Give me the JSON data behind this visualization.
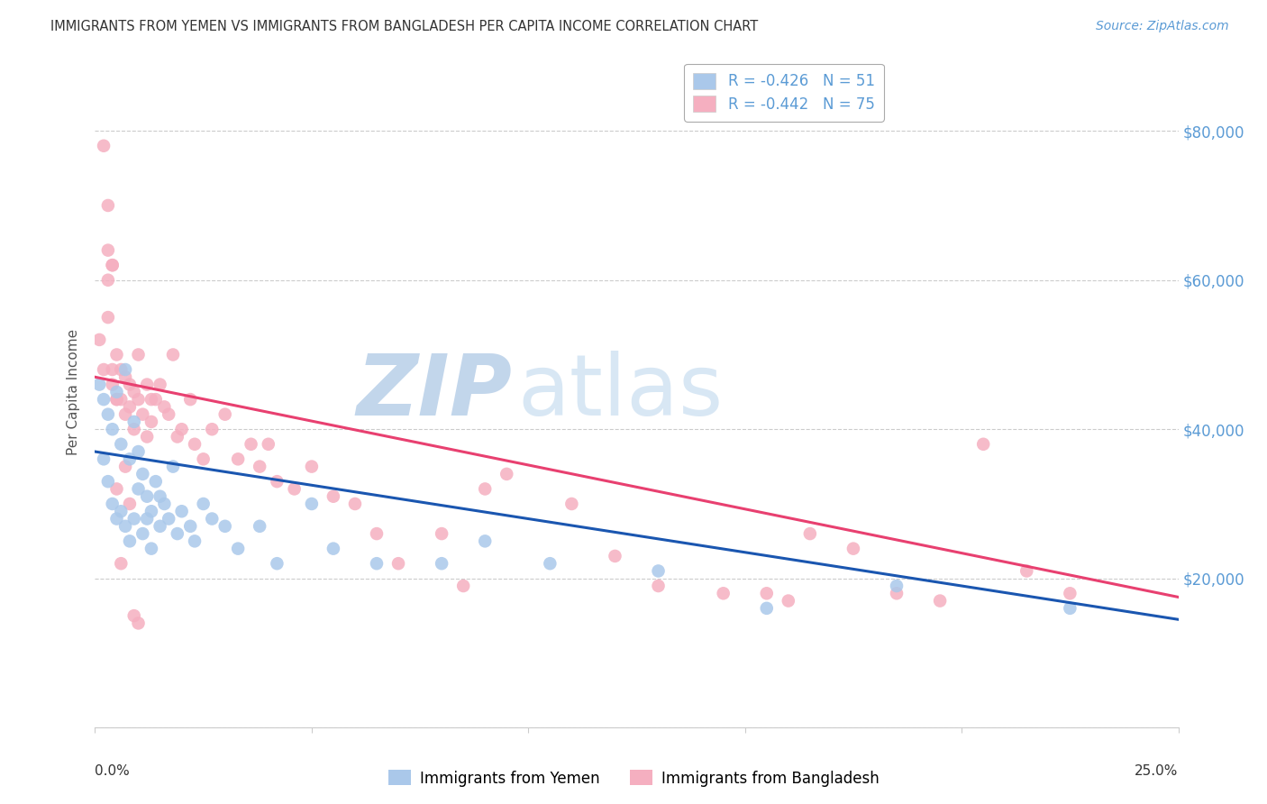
{
  "title": "IMMIGRANTS FROM YEMEN VS IMMIGRANTS FROM BANGLADESH PER CAPITA INCOME CORRELATION CHART",
  "source": "Source: ZipAtlas.com",
  "ylabel": "Per Capita Income",
  "xlim": [
    0.0,
    0.25
  ],
  "ylim": [
    0,
    90000
  ],
  "yticks": [
    0,
    20000,
    40000,
    60000,
    80000
  ],
  "ytick_labels": [
    "",
    "$20,000",
    "$40,000",
    "$60,000",
    "$80,000"
  ],
  "background_color": "#ffffff",
  "grid_color": "#cccccc",
  "label_color": "#5b9bd5",
  "title_color": "#333333",
  "source_color": "#5b9bd5",
  "yemen_color": "#aac8ea",
  "bangladesh_color": "#f5afc0",
  "yemen_line_color": "#1a56b0",
  "bangladesh_line_color": "#e84070",
  "legend_items": [
    {
      "label": "R = -0.426   N = 51",
      "color": "#aac8ea"
    },
    {
      "label": "R = -0.442   N = 75",
      "color": "#f5afc0"
    }
  ],
  "bottom_legend": [
    {
      "label": "Immigrants from Yemen",
      "color": "#aac8ea"
    },
    {
      "label": "Immigrants from Bangladesh",
      "color": "#f5afc0"
    }
  ],
  "yemen_x": [
    0.001,
    0.002,
    0.002,
    0.003,
    0.003,
    0.004,
    0.004,
    0.005,
    0.005,
    0.006,
    0.006,
    0.007,
    0.007,
    0.008,
    0.008,
    0.009,
    0.009,
    0.01,
    0.01,
    0.011,
    0.011,
    0.012,
    0.012,
    0.013,
    0.013,
    0.014,
    0.015,
    0.015,
    0.016,
    0.017,
    0.018,
    0.019,
    0.02,
    0.022,
    0.023,
    0.025,
    0.027,
    0.03,
    0.033,
    0.038,
    0.042,
    0.05,
    0.055,
    0.065,
    0.08,
    0.09,
    0.105,
    0.13,
    0.155,
    0.185,
    0.225
  ],
  "yemen_y": [
    46000,
    44000,
    36000,
    42000,
    33000,
    40000,
    30000,
    45000,
    28000,
    38000,
    29000,
    48000,
    27000,
    36000,
    25000,
    41000,
    28000,
    37000,
    32000,
    34000,
    26000,
    31000,
    28000,
    29000,
    24000,
    33000,
    31000,
    27000,
    30000,
    28000,
    35000,
    26000,
    29000,
    27000,
    25000,
    30000,
    28000,
    27000,
    24000,
    27000,
    22000,
    30000,
    24000,
    22000,
    22000,
    25000,
    22000,
    21000,
    16000,
    19000,
    16000
  ],
  "bangladesh_x": [
    0.001,
    0.002,
    0.002,
    0.003,
    0.003,
    0.004,
    0.004,
    0.005,
    0.005,
    0.006,
    0.006,
    0.007,
    0.007,
    0.008,
    0.008,
    0.009,
    0.009,
    0.01,
    0.01,
    0.011,
    0.012,
    0.012,
    0.013,
    0.013,
    0.014,
    0.015,
    0.016,
    0.017,
    0.018,
    0.019,
    0.02,
    0.022,
    0.023,
    0.025,
    0.027,
    0.03,
    0.033,
    0.036,
    0.038,
    0.04,
    0.042,
    0.046,
    0.05,
    0.055,
    0.06,
    0.065,
    0.07,
    0.08,
    0.085,
    0.09,
    0.095,
    0.11,
    0.12,
    0.13,
    0.145,
    0.155,
    0.16,
    0.165,
    0.175,
    0.185,
    0.195,
    0.205,
    0.215,
    0.225,
    0.003,
    0.003,
    0.004,
    0.004,
    0.005,
    0.005,
    0.006,
    0.007,
    0.008,
    0.009,
    0.01
  ],
  "bangladesh_y": [
    52000,
    78000,
    48000,
    70000,
    64000,
    62000,
    46000,
    50000,
    44000,
    48000,
    44000,
    47000,
    42000,
    46000,
    43000,
    45000,
    40000,
    44000,
    50000,
    42000,
    46000,
    39000,
    44000,
    41000,
    44000,
    46000,
    43000,
    42000,
    50000,
    39000,
    40000,
    44000,
    38000,
    36000,
    40000,
    42000,
    36000,
    38000,
    35000,
    38000,
    33000,
    32000,
    35000,
    31000,
    30000,
    26000,
    22000,
    26000,
    19000,
    32000,
    34000,
    30000,
    23000,
    19000,
    18000,
    18000,
    17000,
    26000,
    24000,
    18000,
    17000,
    38000,
    21000,
    18000,
    60000,
    55000,
    62000,
    48000,
    44000,
    32000,
    22000,
    35000,
    30000,
    15000,
    14000
  ],
  "yemen_trend_x": [
    0.0,
    0.25
  ],
  "yemen_trend_y": [
    37000,
    14500
  ],
  "bangladesh_trend_x": [
    0.0,
    0.25
  ],
  "bangladesh_trend_y": [
    47000,
    17500
  ]
}
